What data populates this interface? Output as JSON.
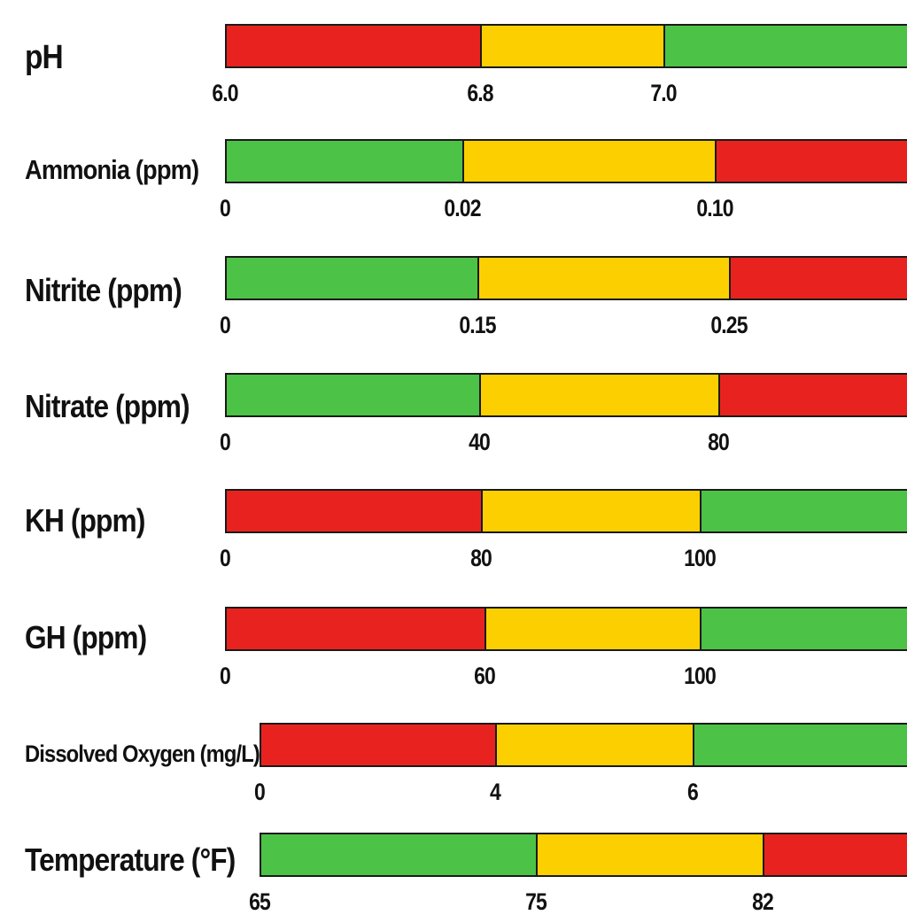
{
  "colors": {
    "red": "#e8231f",
    "yellow": "#fcd000",
    "green": "#4cc346"
  },
  "chart_data": {
    "type": "bar",
    "orientation": "horizontal-segmented",
    "rows": [
      {
        "label": "pH",
        "ticks": [
          "6.0",
          "6.8",
          "7.0"
        ],
        "colors": [
          "red",
          "yellow",
          "green"
        ]
      },
      {
        "label": "Ammonia (ppm)",
        "ticks": [
          "0",
          "0.02",
          "0.10"
        ],
        "colors": [
          "green",
          "yellow",
          "red"
        ]
      },
      {
        "label": "Nitrite (ppm)",
        "ticks": [
          "0",
          "0.15",
          "0.25"
        ],
        "colors": [
          "green",
          "yellow",
          "red"
        ]
      },
      {
        "label": "Nitrate (ppm)",
        "ticks": [
          "0",
          "40",
          "80"
        ],
        "colors": [
          "green",
          "yellow",
          "red"
        ]
      },
      {
        "label": "KH (ppm)",
        "ticks": [
          "0",
          "80",
          "100"
        ],
        "colors": [
          "red",
          "yellow",
          "green"
        ]
      },
      {
        "label": "GH (ppm)",
        "ticks": [
          "0",
          "60",
          "100"
        ],
        "colors": [
          "red",
          "yellow",
          "green"
        ]
      },
      {
        "label": "Dissolved Oxygen (mg/L)",
        "ticks": [
          "0",
          "4",
          "6"
        ],
        "colors": [
          "red",
          "yellow",
          "green"
        ]
      },
      {
        "label": "Temperature (°F)",
        "ticks": [
          "65",
          "75",
          "82"
        ],
        "colors": [
          "green",
          "yellow",
          "red"
        ]
      }
    ]
  }
}
